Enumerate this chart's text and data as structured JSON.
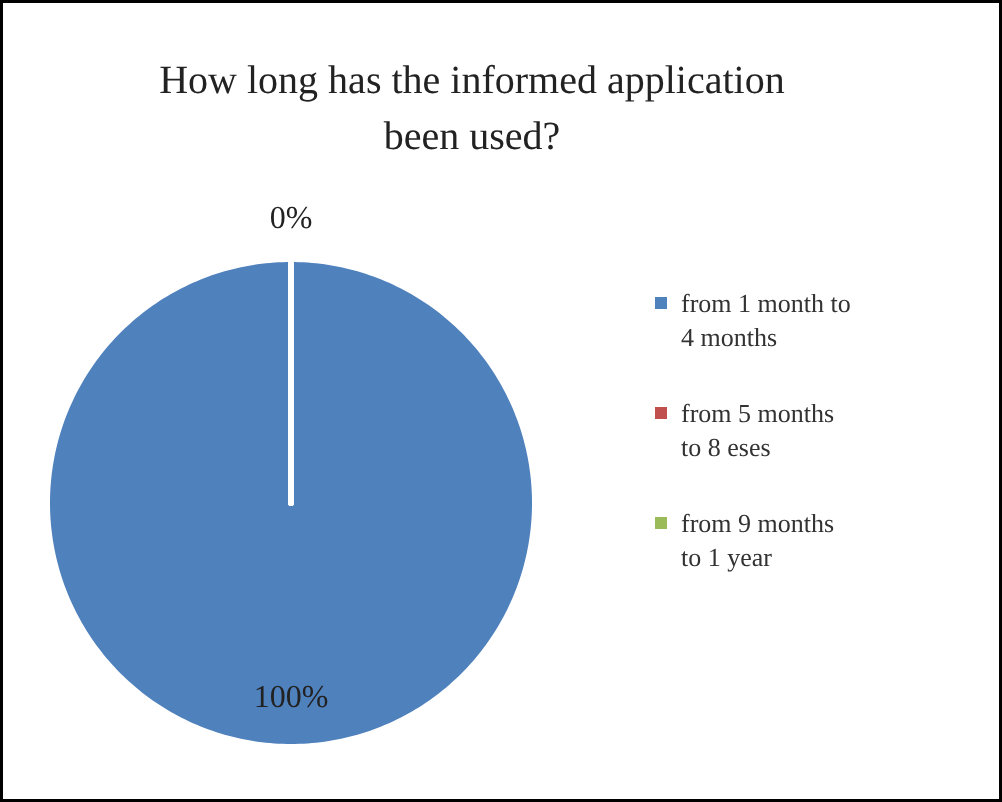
{
  "chart_data": {
    "type": "pie",
    "title": "How long has the informed application been used?",
    "categories": [
      "from 1 month to 4 months",
      "from 5 months to 8 eses",
      "from 9 months to 1 year"
    ],
    "values": [
      100,
      0,
      0
    ],
    "colors": [
      "#4f81bd",
      "#c0504d",
      "#9bbb59"
    ],
    "value_labels": [
      "100%",
      "0%",
      null
    ],
    "legend": "right"
  }
}
